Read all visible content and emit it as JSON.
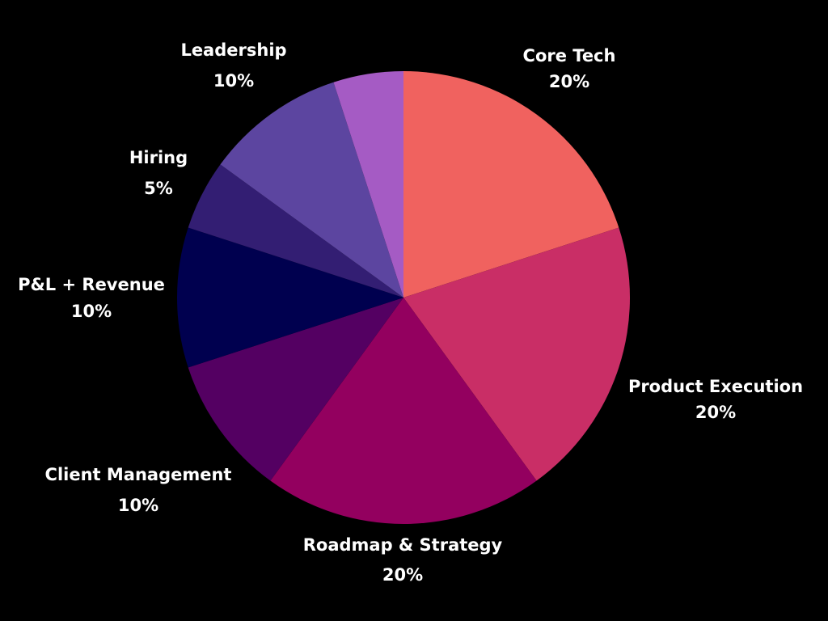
{
  "chart_data": {
    "type": "pie",
    "categories": [
      "Core Tech",
      "Product Execution",
      "Roadmap & Strategy",
      "Client Management",
      "P&L + Revenue",
      "Hiring",
      "Leadership",
      null
    ],
    "values": [
      20,
      20,
      20,
      10,
      10,
      5,
      10,
      5
    ],
    "value_labels": [
      "20%",
      "20%",
      "20%",
      "10%",
      "10%",
      "5%",
      "10%",
      null
    ],
    "colors": [
      "#f0625f",
      "#c92e66",
      "#93005f",
      "#540062",
      "#00004f",
      "#331e73",
      "#5c45a0",
      "#a55bc4"
    ]
  }
}
